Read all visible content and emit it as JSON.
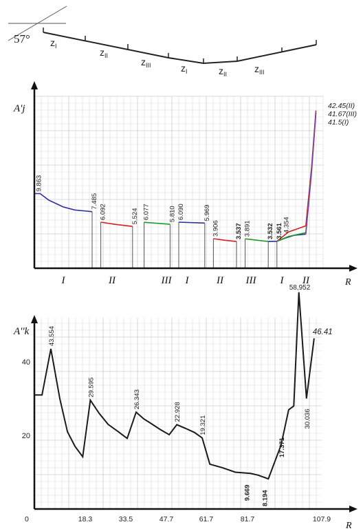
{
  "schematic": {
    "angle_label": "57°",
    "zone_labels": [
      {
        "main": "z",
        "sub": "I"
      },
      {
        "main": "z",
        "sub": "II"
      },
      {
        "main": "z",
        "sub": "III"
      },
      {
        "main": "z",
        "sub": "I"
      },
      {
        "main": "z",
        "sub": "II"
      },
      {
        "main": "z",
        "sub": "III"
      }
    ]
  },
  "chart_data": [
    {
      "type": "line",
      "ylabel": "A'j",
      "xlabel": "R",
      "zone_labels": [
        "I",
        "II",
        "III",
        "I",
        "II",
        "III",
        "I",
        "II"
      ],
      "colors": {
        "blue": "#2a2f9a",
        "red": "#d21e1e",
        "green": "#1f9a2a",
        "purple": "#8a3ab0"
      },
      "segments": [
        {
          "color": "blue",
          "points": [
            [
              0,
              9.863
            ],
            [
              2,
              9.863
            ],
            [
              5,
              9.0
            ],
            [
              10,
              8.1
            ],
            [
              14,
              7.7
            ],
            [
              20,
              7.485
            ]
          ]
        },
        {
          "color": "red",
          "points": [
            [
              23,
              6.092
            ],
            [
              28,
              5.8
            ],
            [
              34,
              5.524
            ]
          ]
        },
        {
          "color": "green",
          "points": [
            [
              38,
              6.077
            ],
            [
              47,
              5.81
            ]
          ]
        },
        {
          "color": "blue",
          "points": [
            [
              50,
              6.09
            ],
            [
              59,
              5.969
            ]
          ]
        },
        {
          "color": "red",
          "points": [
            [
              62,
              3.906
            ],
            [
              66,
              3.7
            ],
            [
              70,
              3.537
            ]
          ]
        },
        {
          "color": "green",
          "points": [
            [
              73,
              3.891
            ],
            [
              81,
              3.532
            ]
          ]
        },
        {
          "color": "blue",
          "points": [
            [
              81,
              3.532
            ],
            [
              84,
              3.561
            ],
            [
              87,
              4.0
            ],
            [
              90,
              4.354
            ],
            [
              94,
              4.5
            ]
          ]
        },
        {
          "color": "red",
          "points": [
            [
              84,
              3.561
            ],
            [
              88,
              4.8
            ],
            [
              94,
              5.6
            ]
          ]
        },
        {
          "color": "green",
          "points": [
            [
              84,
              3.561
            ],
            [
              88,
              4.2
            ],
            [
              94,
              4.7
            ]
          ]
        },
        {
          "color": "red",
          "points": [
            [
              94,
              5.6
            ],
            [
              96,
              20.0
            ],
            [
              97.5,
              42.45
            ]
          ]
        },
        {
          "color": "green",
          "points": [
            [
              94,
              4.7
            ],
            [
              96,
              19.0
            ],
            [
              97.5,
              41.67
            ]
          ]
        },
        {
          "color": "purple",
          "points": [
            [
              94,
              4.5
            ],
            [
              96,
              18.0
            ],
            [
              97.5,
              41.5
            ]
          ]
        }
      ],
      "verticals": [
        20,
        23,
        34,
        38,
        47,
        50,
        59,
        62,
        70,
        73,
        81,
        84
      ],
      "value_labels": [
        {
          "text": "9.863",
          "x": 0.8,
          "y": 9.863
        },
        {
          "text": "7.485",
          "x": 20,
          "y": 7.485
        },
        {
          "text": "6.092",
          "x": 23,
          "y": 6.092
        },
        {
          "text": "5.524",
          "x": 34,
          "y": 5.524
        },
        {
          "text": "6.077",
          "x": 38,
          "y": 6.077
        },
        {
          "text": "5.810",
          "x": 47,
          "y": 5.81
        },
        {
          "text": "6.090",
          "x": 50,
          "y": 6.09
        },
        {
          "text": "5.969",
          "x": 59,
          "y": 5.969
        },
        {
          "text": "3.906",
          "x": 62,
          "y": 3.906
        },
        {
          "text": "3.537",
          "x": 70,
          "y": 3.537,
          "bold": true
        },
        {
          "text": "3.891",
          "x": 73,
          "y": 3.891
        },
        {
          "text": "3.532",
          "x": 81,
          "y": 3.532,
          "bold": true
        },
        {
          "text": "3.561",
          "x": 84,
          "y": 3.561,
          "bold": true
        },
        {
          "text": "4.354",
          "x": 86.5,
          "y": 4.354
        }
      ],
      "end_labels": [
        "42.45(II)",
        "41.67(III)",
        "41.5(I)"
      ],
      "ylim": [
        0,
        44
      ],
      "xlim": [
        0,
        100
      ]
    },
    {
      "type": "line",
      "ylabel": "A''k",
      "xlabel": "R",
      "x_ticks": [
        "0",
        "18.3",
        "33.5",
        "47.7",
        "61.7",
        "81.7",
        "107.9"
      ],
      "y_ticks": [
        "20",
        "40"
      ],
      "points": [
        [
          0,
          31
        ],
        [
          3,
          31
        ],
        [
          6.5,
          43.554
        ],
        [
          10,
          30
        ],
        [
          13,
          21
        ],
        [
          16,
          17
        ],
        [
          19,
          14.2
        ],
        [
          22,
          29.595
        ],
        [
          25.5,
          26
        ],
        [
          29,
          23
        ],
        [
          33,
          21
        ],
        [
          36.5,
          19.2
        ],
        [
          40,
          26.343
        ],
        [
          43,
          24.5
        ],
        [
          46,
          23.2
        ],
        [
          49.5,
          21.6
        ],
        [
          53,
          20.2
        ],
        [
          56,
          22.928
        ],
        [
          59.5,
          21.9
        ],
        [
          63,
          20.8
        ],
        [
          66,
          19.321
        ],
        [
          69,
          12.2
        ],
        [
          74,
          11.2
        ],
        [
          79,
          10
        ],
        [
          85,
          9.669
        ],
        [
          88,
          9.2
        ],
        [
          92,
          8.194
        ],
        [
          97,
          17.371
        ],
        [
          100,
          27
        ],
        [
          102,
          28
        ],
        [
          104,
          58.952
        ],
        [
          107,
          30.036
        ],
        [
          110,
          46.41
        ]
      ],
      "value_labels": [
        {
          "text": "43.554",
          "x": 6.5,
          "y": 43.554
        },
        {
          "text": "29.595",
          "x": 22,
          "y": 29.595
        },
        {
          "text": "26.343",
          "x": 40,
          "y": 26.343
        },
        {
          "text": "22.928",
          "x": 56,
          "y": 22.928
        },
        {
          "text": "19.321",
          "x": 66,
          "y": 19.321
        },
        {
          "text": "9.669",
          "x": 85,
          "y": 9.669,
          "bold": true
        },
        {
          "text": "8.194",
          "x": 92,
          "y": 8.194,
          "bold": true
        },
        {
          "text": "17.371",
          "x": 97,
          "y": 17.371,
          "bold": true
        },
        {
          "text": "58,952",
          "x": 104,
          "y": 58.952
        },
        {
          "text": "30.036",
          "x": 107,
          "y": 30.036
        },
        {
          "text": "46.41",
          "x": 110,
          "y": 46.41
        }
      ],
      "ylim": [
        0,
        52
      ],
      "xlim": [
        0,
        113
      ]
    }
  ]
}
